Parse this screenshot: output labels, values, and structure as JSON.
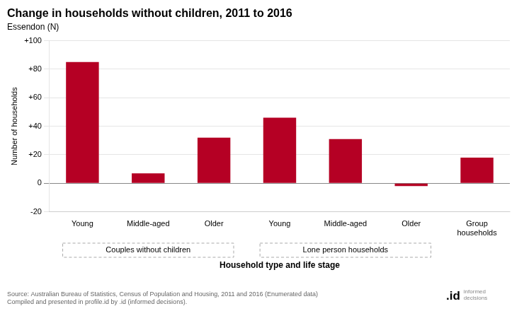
{
  "chart_data": {
    "type": "bar",
    "title": "Change in households without children, 2011 to 2016",
    "subtitle": "Essendon (N)",
    "xlabel": "Household type and life stage",
    "ylabel": "Number of households",
    "categories": [
      "Young",
      "Middle-aged",
      "Older",
      "Young",
      "Middle-aged",
      "Older",
      "Group\nhouseholds"
    ],
    "category_groups": [
      "Couples without children",
      "Couples without children",
      "Couples without children",
      "Lone person households",
      "Lone person households",
      "Lone person households",
      null
    ],
    "values": [
      85,
      7,
      32,
      46,
      31,
      -2,
      18
    ],
    "color": "#B50024",
    "ylim": [
      -20,
      100
    ],
    "yticks": [
      -20,
      0,
      {
        "value": 20,
        "label": "+20"
      },
      {
        "value": 40,
        "label": "+40"
      },
      {
        "value": 60,
        "label": "+60"
      },
      {
        "value": 80,
        "label": "+80"
      },
      {
        "value": 100,
        "label": "+100"
      }
    ],
    "grid": true,
    "source": "Source: Australian Bureau of Statistics, Census of Population and Housing, 2011 and 2016 (Enumerated data)\nCompiled and presented in profile.id by .id (informed decisions).",
    "annotations": [
      ".id",
      "informed\ndecisions"
    ]
  }
}
